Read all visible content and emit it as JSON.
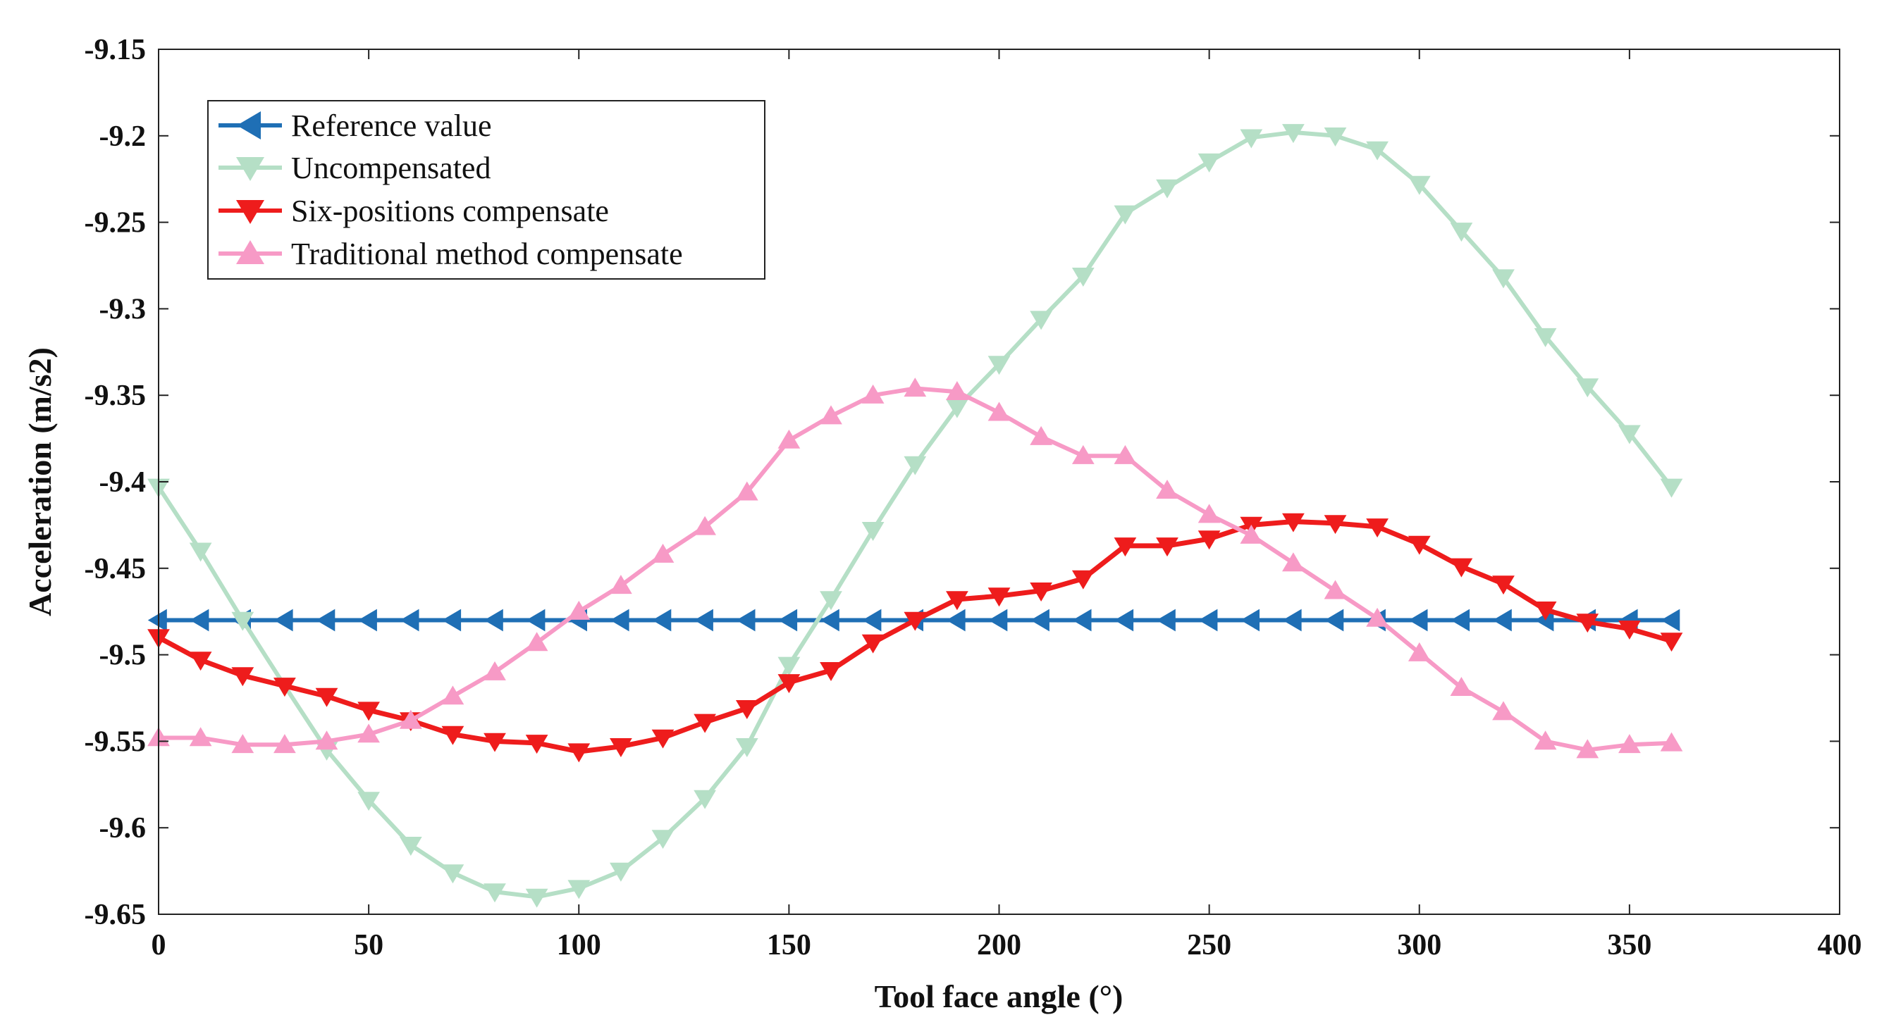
{
  "chart_data": {
    "type": "line",
    "title": "",
    "xlabel": "Tool face angle (°)",
    "ylabel": "Acceleration (m/s2)",
    "xlim": [
      0,
      400
    ],
    "ylim": [
      -9.65,
      -9.15
    ],
    "xticks": [
      0,
      50,
      100,
      150,
      200,
      250,
      300,
      350,
      400
    ],
    "yticks": [
      -9.15,
      -9.2,
      -9.25,
      -9.3,
      -9.35,
      -9.4,
      -9.45,
      -9.5,
      -9.55,
      -9.6,
      -9.65
    ],
    "ytick_labels": [
      "-9.15",
      "-9.2",
      "-9.25",
      "-9.3",
      "-9.35",
      "-9.4",
      "-9.45",
      "-9.5",
      "-9.55",
      "-9.6",
      "-9.65"
    ],
    "grid": false,
    "legend_position": "top-left",
    "x": [
      0,
      10,
      20,
      30,
      40,
      50,
      60,
      70,
      80,
      90,
      100,
      110,
      120,
      130,
      140,
      150,
      160,
      170,
      180,
      190,
      200,
      210,
      220,
      230,
      240,
      250,
      260,
      270,
      280,
      290,
      300,
      310,
      320,
      330,
      340,
      350,
      360
    ],
    "series": [
      {
        "name": "Reference value",
        "color": "#1f6fb5",
        "marker": "triangle-left",
        "values": [
          -9.48,
          -9.48,
          -9.48,
          -9.48,
          -9.48,
          -9.48,
          -9.48,
          -9.48,
          -9.48,
          -9.48,
          -9.48,
          -9.48,
          -9.48,
          -9.48,
          -9.48,
          -9.48,
          -9.48,
          -9.48,
          -9.48,
          -9.48,
          -9.48,
          -9.48,
          -9.48,
          -9.48,
          -9.48,
          -9.48,
          -9.48,
          -9.48,
          -9.48,
          -9.48,
          -9.48,
          -9.48,
          -9.48,
          -9.48,
          -9.48,
          -9.48,
          -9.48
        ]
      },
      {
        "name": "Uncompensated",
        "color": "#b5dfc6",
        "marker": "triangle-down",
        "values": [
          -9.403,
          -9.44,
          -9.48,
          -9.518,
          -9.555,
          -9.584,
          -9.61,
          -9.626,
          -9.637,
          -9.64,
          -9.635,
          -9.625,
          -9.606,
          -9.583,
          -9.553,
          -9.506,
          -9.468,
          -9.428,
          -9.39,
          -9.357,
          -9.332,
          -9.306,
          -9.281,
          -9.245,
          -9.23,
          -9.215,
          -9.201,
          -9.198,
          -9.2,
          -9.208,
          -9.228,
          -9.255,
          -9.282,
          -9.316,
          -9.345,
          -9.372,
          -9.403
        ]
      },
      {
        "name": "Six-positions compensate",
        "color": "#ee1c1c",
        "marker": "triangle-down",
        "values": [
          -9.49,
          -9.503,
          -9.512,
          -9.518,
          -9.524,
          -9.532,
          -9.538,
          -9.546,
          -9.55,
          -9.551,
          -9.556,
          -9.553,
          -9.548,
          -9.539,
          -9.531,
          -9.516,
          -9.509,
          -9.493,
          -9.48,
          -9.468,
          -9.466,
          -9.463,
          -9.456,
          -9.437,
          -9.437,
          -9.433,
          -9.425,
          -9.423,
          -9.424,
          -9.426,
          -9.436,
          -9.449,
          -9.459,
          -9.474,
          -9.481,
          -9.485,
          -9.492
        ]
      },
      {
        "name": "Traditional method compensate",
        "color": "#f79ac6",
        "marker": "triangle-up",
        "values": [
          -9.548,
          -9.548,
          -9.552,
          -9.552,
          -9.55,
          -9.546,
          -9.538,
          -9.524,
          -9.51,
          -9.493,
          -9.475,
          -9.46,
          -9.442,
          -9.426,
          -9.406,
          -9.376,
          -9.362,
          -9.35,
          -9.346,
          -9.348,
          -9.36,
          -9.374,
          -9.385,
          -9.385,
          -9.405,
          -9.419,
          -9.431,
          -9.447,
          -9.463,
          -9.479,
          -9.499,
          -9.519,
          -9.533,
          -9.55,
          -9.555,
          -9.552,
          -9.551
        ]
      }
    ]
  }
}
